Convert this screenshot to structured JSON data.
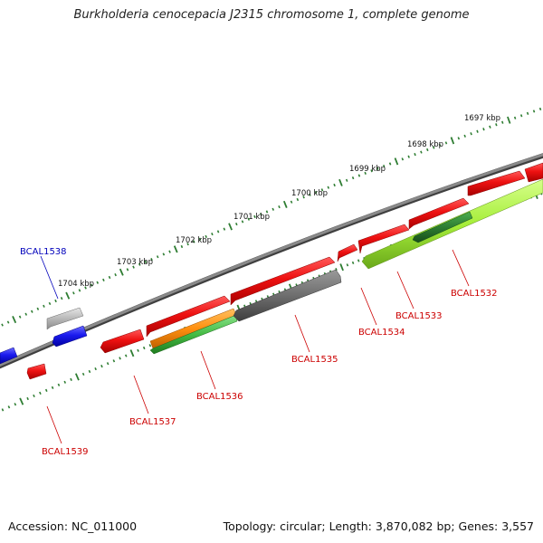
{
  "title": "Burkholderia cenocepacia J2315 chromosome 1, complete genome",
  "footer": {
    "accession": "Accession: NC_011000",
    "summary": "Topology: circular; Length: 3,870,082 bp; Genes: 3,557"
  },
  "colors": {
    "backbone": "#7d7d7d",
    "tick_track": "#2e7d32",
    "label_red": "#cc0000",
    "label_blue": "#0000bb",
    "red": "#ee1111",
    "blue": "#1a1aee",
    "gray_light": "#b9b9b9",
    "gray_dark": "#707070",
    "orange": "#ff9010",
    "green": "#44bb44",
    "dark_green": "#2e7d32",
    "lime": "#a6ee3a"
  },
  "scale_labels": [
    "1697 kbp",
    "1698 kbp",
    "1699 kbp",
    "1700 kbp",
    "1701 kbp",
    "1702 kbp",
    "1703 kbp",
    "1704 kbp"
  ],
  "gene_labels": [
    {
      "name": "BCAL1532",
      "color": "red"
    },
    {
      "name": "BCAL1533",
      "color": "red"
    },
    {
      "name": "BCAL1534",
      "color": "red"
    },
    {
      "name": "BCAL1535",
      "color": "red"
    },
    {
      "name": "BCAL1536",
      "color": "red"
    },
    {
      "name": "BCAL1537",
      "color": "red"
    },
    {
      "name": "BCAL1538",
      "color": "blue"
    },
    {
      "name": "BCAL1539",
      "color": "red"
    }
  ]
}
